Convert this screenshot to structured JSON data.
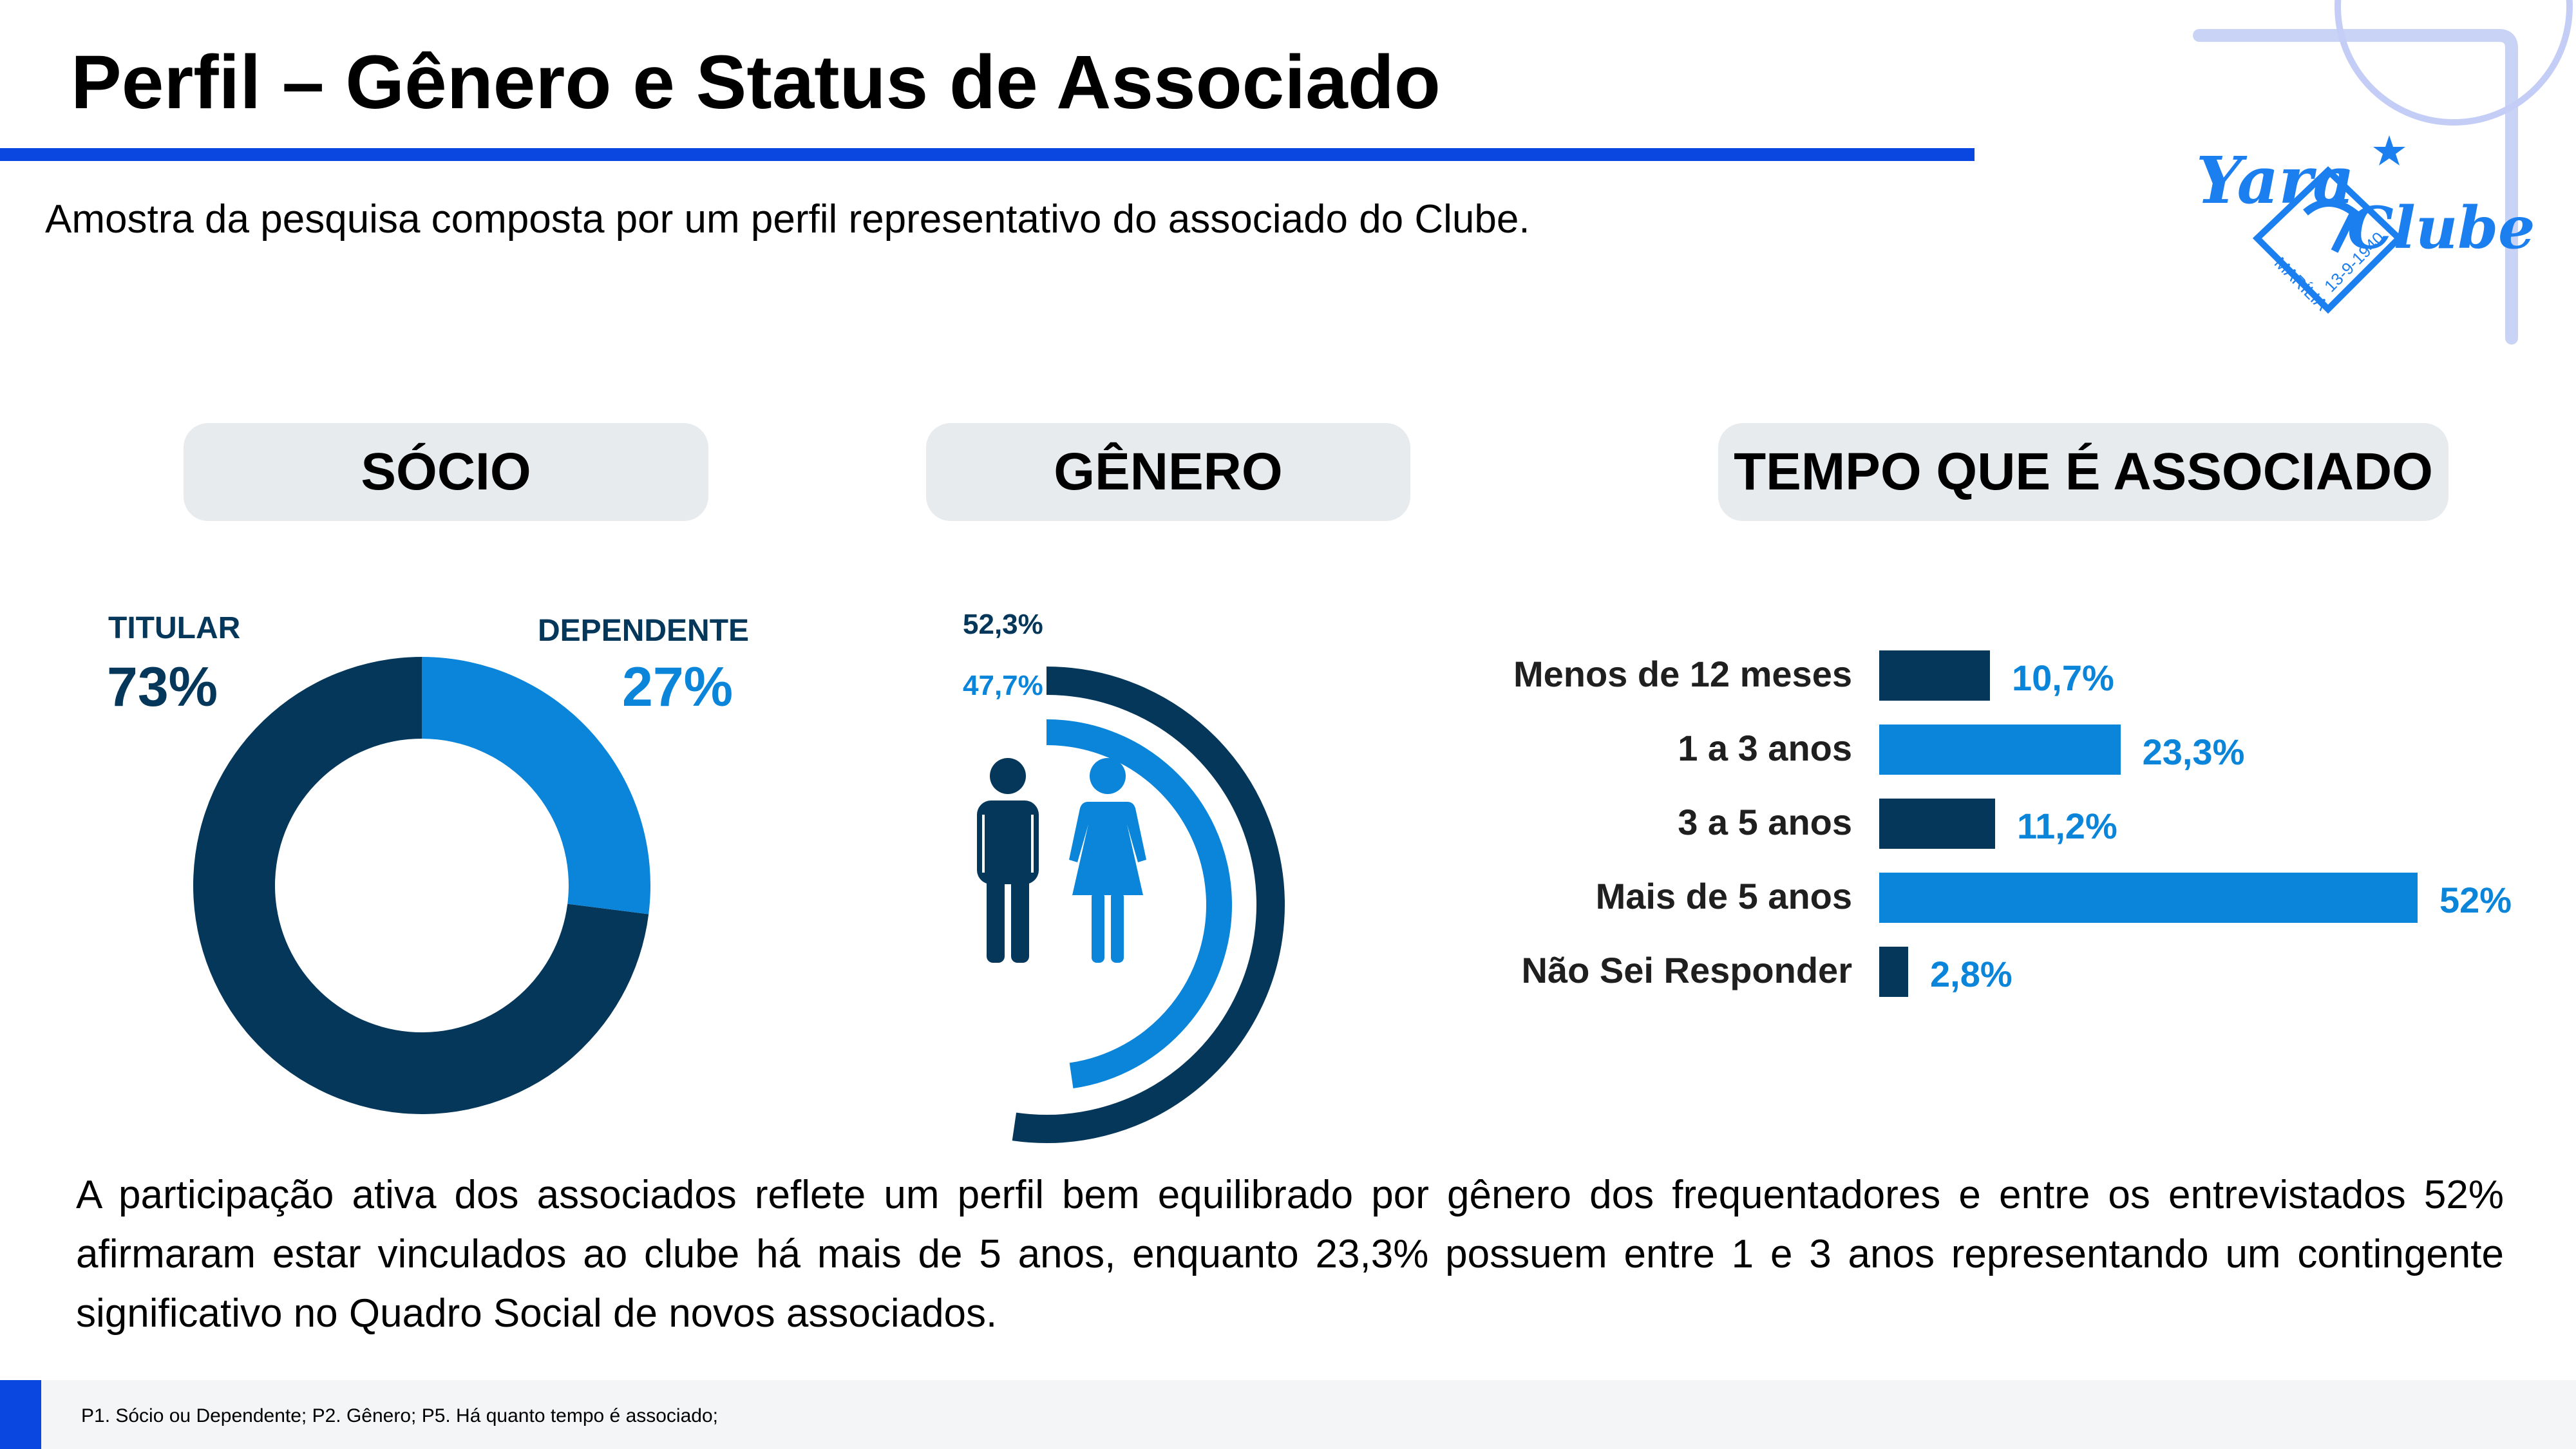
{
  "page": {
    "title": "Perfil – Gênero e Status de Associado",
    "subtitle": "Amostra da pesquisa composta por um perfil representativo do associado do Clube.",
    "summary": "A participação ativa dos associados reflete um perfil bem equilibrado por gênero dos frequentadores e entre os entrevistados 52% afirmaram estar vinculados ao clube há mais de 5 anos, enquanto 23,3% possuem entre 1 e 3 anos representando um contingente significativo no Quadro Social de novos associados.",
    "footer_note": "P1. Sócio ou Dependente; P2. Gênero; P5. Há quanto tempo é associado;"
  },
  "logo": {
    "text_yara": "Yara",
    "text_clube": "Clube",
    "city": "MARÍLIA",
    "date": "13-9-1940"
  },
  "colors": {
    "dark": "#05375a",
    "light": "#0a85d9",
    "accent": "#0a47e0",
    "pill": "#e8ebee"
  },
  "sections": {
    "socio": "SÓCIO",
    "genero": "GÊNERO",
    "tempo": "TEMPO QUE É ASSOCIADO"
  },
  "icons": [
    "male-person-icon",
    "female-person-icon"
  ],
  "chart_data": [
    {
      "type": "pie",
      "title": "SÓCIO",
      "donut": true,
      "categories": [
        "TITULAR",
        "DEPENDENTE"
      ],
      "values": [
        73,
        27
      ],
      "labels": [
        "73%",
        "27%"
      ],
      "colors": [
        "#05375a",
        "#0a85d9"
      ]
    },
    {
      "type": "bar",
      "title": "GÊNERO",
      "style": "radial",
      "categories": [
        "male",
        "female"
      ],
      "values": [
        52.3,
        47.7
      ],
      "labels": [
        "52,3%",
        "47,7%"
      ],
      "colors": [
        "#05375a",
        "#0a85d9"
      ]
    },
    {
      "type": "bar",
      "title": "TEMPO QUE É ASSOCIADO",
      "orientation": "horizontal",
      "categories": [
        "Menos de 12 meses",
        "1 a 3 anos",
        "3 a 5 anos",
        "Mais de 5 anos",
        "Não Sei Responder"
      ],
      "values": [
        10.7,
        23.3,
        11.2,
        52,
        2.8
      ],
      "labels": [
        "10,7%",
        "23,3%",
        "11,2%",
        "52%",
        "2,8%"
      ],
      "colors": [
        "#05375a",
        "#0a85d9",
        "#05375a",
        "#0a85d9",
        "#05375a"
      ]
    }
  ]
}
